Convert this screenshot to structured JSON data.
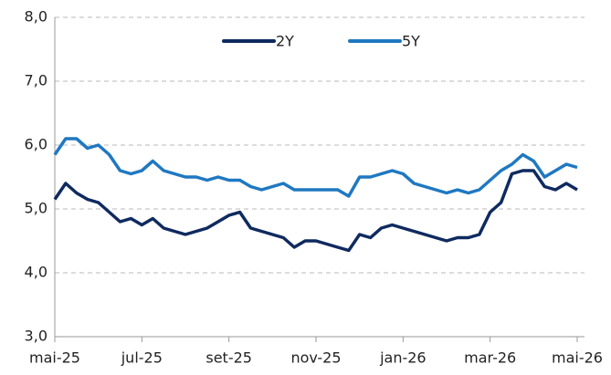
{
  "chart_data": {
    "type": "line",
    "categories": [
      "mai-25",
      null,
      null,
      null,
      null,
      null,
      null,
      null,
      "jul-25",
      null,
      null,
      null,
      null,
      null,
      null,
      null,
      "set-25",
      null,
      null,
      null,
      null,
      null,
      null,
      null,
      "nov-25",
      null,
      null,
      null,
      null,
      null,
      null,
      null,
      "jan-26",
      null,
      null,
      null,
      null,
      null,
      null,
      null,
      "mar-26",
      null,
      null,
      null,
      null,
      null,
      null,
      null,
      "mai-26"
    ],
    "series": [
      {
        "name": "2Y",
        "color": "#0f2a5f",
        "values": [
          5.15,
          5.4,
          5.25,
          5.15,
          5.1,
          4.95,
          4.8,
          4.85,
          4.75,
          4.85,
          4.7,
          4.65,
          4.6,
          4.65,
          4.7,
          4.8,
          4.9,
          4.95,
          4.7,
          4.65,
          4.6,
          4.55,
          4.4,
          4.5,
          4.5,
          4.45,
          4.4,
          4.35,
          4.6,
          4.55,
          4.7,
          4.75,
          4.7,
          4.65,
          4.6,
          4.55,
          4.5,
          4.55,
          4.55,
          4.6,
          4.95,
          5.1,
          5.55,
          5.6,
          5.6,
          5.35,
          5.3,
          5.4,
          5.3
        ]
      },
      {
        "name": "5Y",
        "color": "#1f78c1",
        "values": [
          5.85,
          6.1,
          6.1,
          5.95,
          6.0,
          5.85,
          5.6,
          5.55,
          5.6,
          5.75,
          5.6,
          5.55,
          5.5,
          5.5,
          5.45,
          5.5,
          5.45,
          5.45,
          5.35,
          5.3,
          5.35,
          5.4,
          5.3,
          5.3,
          5.3,
          5.3,
          5.3,
          5.2,
          5.5,
          5.5,
          5.55,
          5.6,
          5.55,
          5.4,
          5.35,
          5.3,
          5.25,
          5.3,
          5.25,
          5.3,
          5.45,
          5.6,
          5.7,
          5.85,
          5.75,
          5.5,
          5.6,
          5.7,
          5.65
        ]
      }
    ],
    "ylim": [
      3,
      8
    ],
    "yticks": [
      {
        "value": 3,
        "label": "3,0"
      },
      {
        "value": 4,
        "label": "4,0"
      },
      {
        "value": 5,
        "label": "5,0"
      },
      {
        "value": 6,
        "label": "6,0"
      },
      {
        "value": 7,
        "label": "7,0"
      },
      {
        "value": 8,
        "label": "8,0"
      }
    ],
    "grid": true,
    "legend": "top"
  }
}
